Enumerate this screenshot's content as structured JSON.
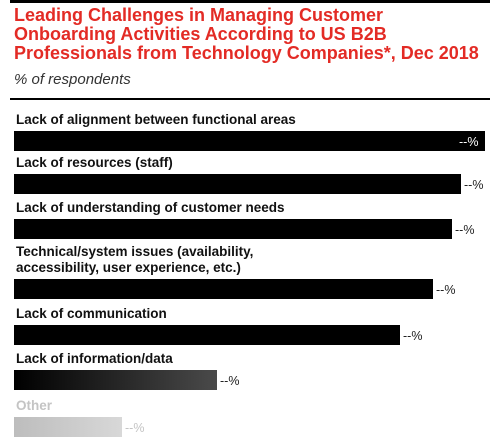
{
  "chart_data": {
    "type": "bar",
    "orientation": "horizontal",
    "title": "Leading Challenges in Managing Customer Onboarding Activities According to US B2B Professionals from Technology Companies*, Dec 2018",
    "subtitle": "% of respondents",
    "xlabel": "",
    "ylabel": "",
    "grid": false,
    "legend": "none",
    "xlim": [
      0,
      100
    ],
    "categories": [
      "Lack of alignment between functional areas",
      "Lack of resources (staff)",
      "Lack of understanding of customer needs",
      "Technical/system issues (availability, accessibility, user experience, etc.)",
      "Lack of communication",
      "Lack of information/data",
      "Other"
    ],
    "label_lines": [
      [
        "Lack of alignment between functional areas"
      ],
      [
        "Lack of resources (staff)"
      ],
      [
        "Lack of understanding of customer needs"
      ],
      [
        "Technical/system issues (availability,",
        "accessibility, user experience, etc.)"
      ],
      [
        "Lack of communication"
      ],
      [
        "Lack of information/data"
      ],
      [
        "Other"
      ]
    ],
    "values": [
      100,
      95,
      93,
      89,
      82,
      43,
      23
    ],
    "value_labels": [
      "--%",
      "--%",
      "--%",
      "--%",
      "--%",
      "--%",
      "--%"
    ],
    "colors": {
      "bar": "#000000",
      "bar_faded_1": "#4a4a4a",
      "bar_faded_2": "#d8d8d8",
      "label_faded": "#c4c4c4",
      "title": "#e32b25"
    }
  }
}
